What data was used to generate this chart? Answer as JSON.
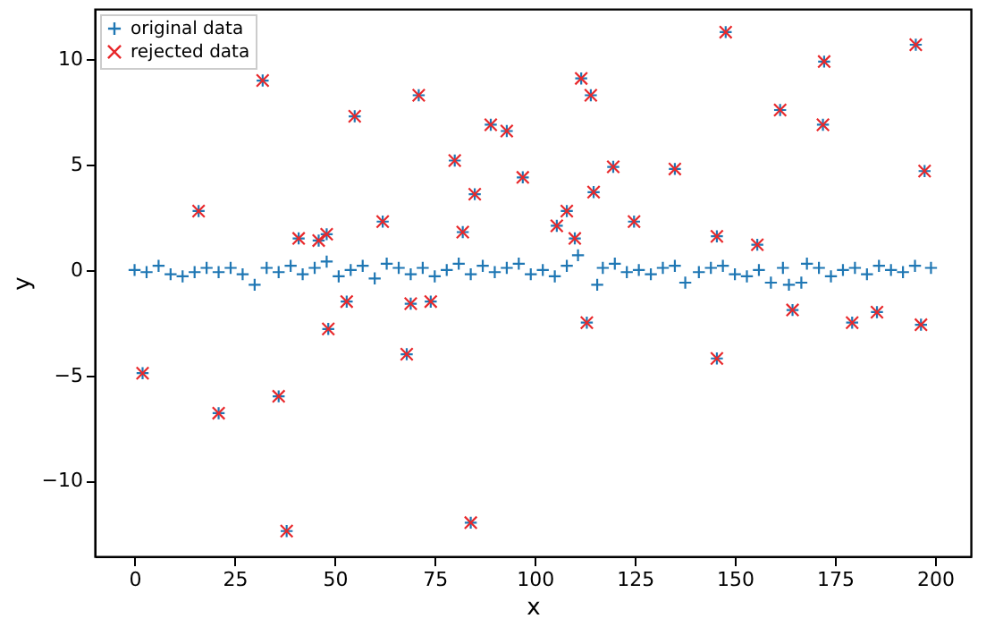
{
  "chart_data": {
    "type": "scatter",
    "xlabel": "x",
    "ylabel": "y",
    "xlim": [
      -9.95,
      208.95
    ],
    "ylim": [
      -13.6,
      12.4
    ],
    "xticks": [
      0,
      25,
      50,
      75,
      100,
      125,
      150,
      175,
      200
    ],
    "yticks": [
      -10,
      -5,
      0,
      5,
      10
    ],
    "grid": false,
    "legend": "top left",
    "series": [
      {
        "name": "original data",
        "color": "#1f77b4",
        "marker": "plus",
        "x": [
          0,
          3,
          6,
          9,
          12,
          15,
          18,
          21,
          24,
          27,
          30,
          33,
          36,
          39,
          42,
          45,
          48,
          51,
          54,
          57,
          60,
          63,
          66,
          69,
          72,
          75,
          78,
          81,
          84,
          87,
          90,
          93,
          96,
          99,
          102,
          105,
          108,
          110.8,
          115.6,
          117,
          120,
          123,
          126,
          129,
          132,
          135,
          137.6,
          141,
          144,
          147,
          150,
          153,
          156,
          159,
          162,
          163.5,
          166.6,
          168,
          171,
          174,
          177,
          180,
          183,
          186,
          189,
          192,
          195,
          199,
          2,
          16,
          21,
          32,
          36,
          38,
          41,
          46,
          48,
          48.4,
          53,
          55,
          62,
          68,
          69,
          71,
          74,
          80,
          82,
          84,
          85,
          89,
          93,
          97,
          105.5,
          108,
          110,
          111.6,
          113,
          114,
          114.7,
          119.6,
          124.8,
          135,
          145.5,
          145.5,
          147.7,
          155.6,
          161.3,
          164.4,
          172,
          172.3,
          179.3,
          185.5,
          195.2,
          196.5,
          197.4
        ],
        "values": [
          0,
          -0.1,
          0.2,
          -0.2,
          -0.3,
          -0.1,
          0.1,
          -0.1,
          0.1,
          -0.2,
          -0.7,
          0.1,
          -0.1,
          0.2,
          -0.2,
          0.1,
          0.4,
          -0.3,
          0,
          0.2,
          -0.4,
          0.3,
          0.1,
          -0.2,
          0.1,
          -0.3,
          0,
          0.3,
          -0.2,
          0.2,
          -0.1,
          0.1,
          0.3,
          -0.2,
          0,
          -0.3,
          0.2,
          0.7,
          -0.7,
          0.1,
          0.3,
          -0.1,
          0,
          -0.2,
          0.1,
          0.2,
          -0.6,
          -0.1,
          0.1,
          0.2,
          -0.2,
          -0.3,
          0,
          -0.6,
          0.1,
          -0.7,
          -0.6,
          0.3,
          0.1,
          -0.3,
          0,
          0.1,
          -0.2,
          0.2,
          0,
          -0.1,
          0.2,
          0.1,
          -4.9,
          2.8,
          -6.8,
          9.0,
          -6.0,
          -12.4,
          1.5,
          1.4,
          1.7,
          -2.8,
          -1.5,
          7.3,
          2.3,
          -4.0,
          -1.6,
          8.3,
          -1.5,
          5.2,
          1.8,
          -12.0,
          3.6,
          6.9,
          6.6,
          4.4,
          2.1,
          2.8,
          1.5,
          9.1,
          -2.5,
          8.3,
          3.7,
          4.9,
          2.3,
          4.8,
          -4.2,
          1.6,
          11.3,
          1.2,
          7.6,
          -1.9,
          6.9,
          9.9,
          -2.5,
          -2.0,
          10.7,
          -2.6,
          4.7
        ]
      },
      {
        "name": "rejected data",
        "color": "#e8282b",
        "marker": "x",
        "x": [
          2,
          16,
          21,
          32,
          36,
          38,
          41,
          46,
          48,
          48.4,
          53,
          55,
          62,
          68,
          69,
          71,
          74,
          80,
          82,
          84,
          85,
          89,
          93,
          97,
          105.5,
          108,
          110,
          111.6,
          113,
          114,
          114.7,
          119.6,
          124.8,
          135,
          145.5,
          145.5,
          147.7,
          155.6,
          161.3,
          164.4,
          172,
          172.3,
          179.3,
          185.5,
          195.2,
          196.5,
          197.4
        ],
        "values": [
          -4.9,
          2.8,
          -6.8,
          9.0,
          -6.0,
          -12.4,
          1.5,
          1.4,
          1.7,
          -2.8,
          -1.5,
          7.3,
          2.3,
          -4.0,
          -1.6,
          8.3,
          -1.5,
          5.2,
          1.8,
          -12.0,
          3.6,
          6.9,
          6.6,
          4.4,
          2.1,
          2.8,
          1.5,
          9.1,
          -2.5,
          8.3,
          3.7,
          4.9,
          2.3,
          4.8,
          -4.2,
          1.6,
          11.3,
          1.2,
          7.6,
          -1.9,
          6.9,
          9.9,
          -2.5,
          -2.0,
          10.7,
          -2.6,
          4.7
        ]
      }
    ]
  }
}
